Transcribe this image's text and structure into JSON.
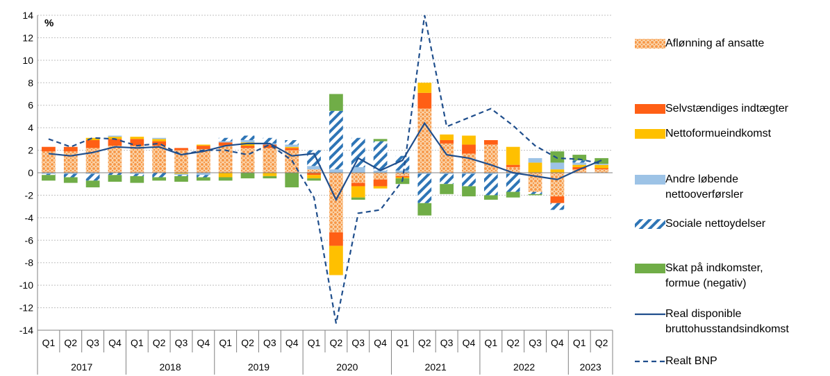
{
  "chart_data": {
    "type": "bar",
    "ylabel": "%",
    "ylim": [
      -14,
      14
    ],
    "yticks": [
      -14,
      -12,
      -10,
      -8,
      -6,
      -4,
      -2,
      0,
      2,
      4,
      6,
      8,
      10,
      12,
      14
    ],
    "grid": true,
    "legend_position": "right",
    "years": [
      "2017",
      "2018",
      "2019",
      "2020",
      "2021",
      "2022",
      "2023"
    ],
    "quarters": [
      "Q1",
      "Q2",
      "Q3",
      "Q4",
      "Q1",
      "Q2",
      "Q3",
      "Q4",
      "Q1",
      "Q2",
      "Q3",
      "Q4",
      "Q1",
      "Q2",
      "Q3",
      "Q4",
      "Q1",
      "Q2",
      "Q3",
      "Q4",
      "Q1",
      "Q2",
      "Q3",
      "Q4",
      "Q1",
      "Q2"
    ],
    "series": [
      {
        "name": "Aflønning af ansatte",
        "kind": "bar",
        "color": "#F79646",
        "values": [
          1.9,
          1.9,
          2.2,
          2.4,
          2.4,
          2.4,
          2.0,
          2.1,
          2.4,
          2.2,
          2.2,
          2.0,
          0.3,
          -5.3,
          -0.9,
          -0.6,
          -0.3,
          5.7,
          2.6,
          1.7,
          2.5,
          0.5,
          -1.7,
          -2.1,
          0.3,
          0.3
        ]
      },
      {
        "name": "Selvstændiges indtægter",
        "kind": "bar",
        "color": "#FF5F15",
        "values": [
          0.4,
          0.4,
          0.7,
          0.6,
          0.6,
          0.4,
          0.2,
          0.3,
          0.3,
          0.2,
          0.3,
          0.2,
          -0.2,
          -1.2,
          -0.3,
          -0.6,
          -0.1,
          1.4,
          0.3,
          0.8,
          0.4,
          0.2,
          0.0,
          -0.6,
          0.2,
          0.1
        ]
      },
      {
        "name": "Nettoformueindkomst",
        "kind": "bar",
        "color": "#FFC000",
        "values": [
          0.0,
          0.0,
          0.2,
          0.2,
          0.2,
          0.2,
          -0.1,
          0.1,
          -0.4,
          0.3,
          -0.3,
          0.1,
          -0.3,
          -2.6,
          -1.0,
          -0.2,
          -0.1,
          0.9,
          0.5,
          0.8,
          0.0,
          1.6,
          0.9,
          0.3,
          0.2,
          0.3
        ]
      },
      {
        "name": "Andre løbende nettooverførsler",
        "kind": "bar",
        "color": "#9DC3E6",
        "values": [
          -0.1,
          -0.1,
          -0.1,
          0.1,
          -0.1,
          0.1,
          -0.1,
          -0.2,
          0.1,
          0.2,
          0.1,
          0.2,
          0.3,
          0.3,
          0.5,
          0.2,
          0.2,
          -0.1,
          -0.1,
          -0.1,
          -0.1,
          -0.1,
          0.4,
          0.6,
          0.2,
          0.1
        ]
      },
      {
        "name": "Sociale nettoydelser",
        "kind": "bar",
        "color": "#2E75B6",
        "pattern": "diagonal-stripes",
        "values": [
          -0.1,
          -0.3,
          -0.6,
          -0.2,
          -0.2,
          -0.4,
          -0.1,
          -0.2,
          0.3,
          0.4,
          0.5,
          0.4,
          1.4,
          5.2,
          2.6,
          2.6,
          1.3,
          -2.6,
          -0.9,
          -1.1,
          -1.9,
          -1.6,
          -0.2,
          -0.6,
          0.2,
          0.0
        ]
      },
      {
        "name": "Skat på indkomster, formue (negativ)",
        "kind": "bar",
        "color": "#70AD47",
        "values": [
          -0.5,
          -0.5,
          -0.6,
          -0.6,
          -0.6,
          -0.3,
          -0.5,
          -0.3,
          -0.3,
          -0.5,
          -0.2,
          -1.3,
          -0.2,
          1.5,
          -0.2,
          0.2,
          -0.5,
          -1.1,
          -0.9,
          -0.9,
          -0.4,
          -0.5,
          -0.1,
          1.0,
          0.5,
          0.5
        ]
      },
      {
        "name": "Real disponible bruttohusstandsindkomst",
        "kind": "line",
        "color": "#1F4E8C",
        "dash": "solid",
        "values": [
          1.7,
          1.5,
          1.8,
          2.3,
          2.2,
          2.3,
          1.6,
          1.9,
          2.4,
          2.6,
          2.6,
          1.5,
          1.7,
          -2.4,
          1.3,
          0.2,
          1.1,
          4.4,
          1.6,
          1.3,
          0.7,
          0.0,
          -0.3,
          -0.6,
          0.3,
          1.1
        ]
      },
      {
        "name": "Realt BNP",
        "kind": "line",
        "color": "#1F4E8C",
        "dash": "dashed",
        "values": [
          3.0,
          2.3,
          3.1,
          3.0,
          2.4,
          2.6,
          1.6,
          2.0,
          2.0,
          1.6,
          2.5,
          1.1,
          -2.2,
          -13.4,
          -3.6,
          -3.3,
          -0.7,
          14.0,
          4.1,
          4.9,
          5.7,
          4.2,
          2.4,
          1.3,
          1.2,
          0.8
        ]
      }
    ]
  }
}
